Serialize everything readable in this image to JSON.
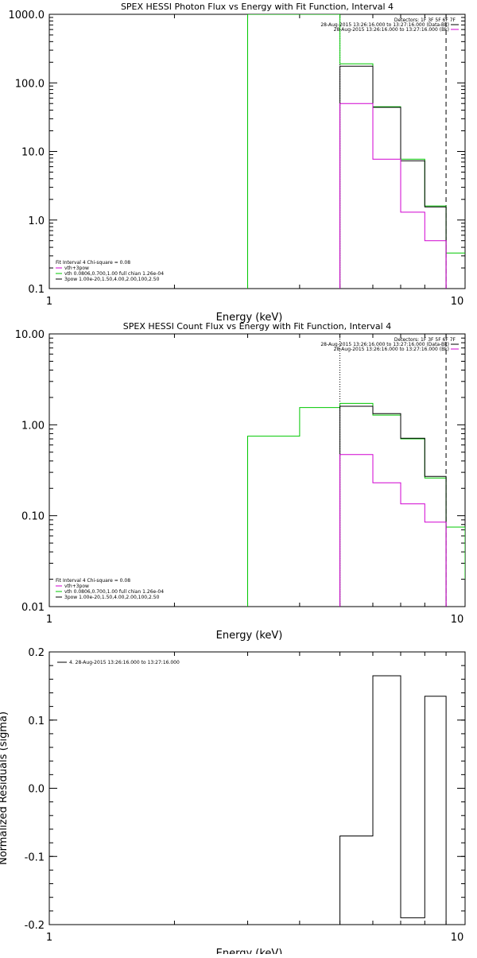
{
  "colors": {
    "background": "#ffffff",
    "axis": "#000000",
    "black": "#000000",
    "green": "#00c800",
    "magenta": "#d000d0"
  },
  "chart_data": [
    {
      "type": "line",
      "title": "SPEX HESSI Photon Flux vs Energy with Fit Function, Interval 4",
      "xlabel": "Energy (keV)",
      "ylabel": "",
      "xscale": "log",
      "yscale": "log",
      "xlim": [
        1,
        10
      ],
      "ylim": [
        0.1,
        1000
      ],
      "x_ticks": [
        1,
        10
      ],
      "x_tick_labels": [
        "1",
        "10"
      ],
      "y_ticks": [
        0.1,
        1,
        10,
        100,
        1000
      ],
      "y_tick_labels": [
        "0.1",
        "1.0",
        "10.0",
        "100.0",
        "1000.0"
      ],
      "legend_top": [
        "Detectors: 1F 3F 5F 6F 7F",
        "28-Aug-2015 13:26:16.000 to 13:27:16.000 (Data-Bk)",
        "28-Aug-2015 13:26:16.000 to 13:27:16.000 (Bk)"
      ],
      "legend_bottom": [
        "Fit Interval 4   Chi-square = 0.08",
        "vth+3pow",
        "vth 0.0806,0.700,1.00  full chian 1.26e-04",
        "3pow 1.00e-20,1.50,4.00,2.00,100,2.50"
      ],
      "vlines": [
        {
          "x": 5.0,
          "style": "dotted",
          "color": "black"
        },
        {
          "x": 9.0,
          "style": "dashed",
          "color": "black"
        }
      ],
      "series": [
        {
          "color": "green",
          "x": [
            3,
            3,
            5,
            5,
            6,
            6,
            7,
            7,
            8,
            8,
            9,
            9,
            10
          ],
          "y": [
            0.1,
            1000,
            1000,
            190,
            190,
            45,
            45,
            7.7,
            7.7,
            1.6,
            1.6,
            0.33,
            0.33
          ]
        },
        {
          "color": "black",
          "x": [
            5,
            5,
            6,
            6,
            7,
            7,
            8,
            8,
            9,
            9
          ],
          "y": [
            0.1,
            175,
            175,
            44,
            44,
            7.3,
            7.3,
            1.55,
            1.55,
            0.1
          ]
        },
        {
          "color": "magenta",
          "x": [
            5,
            5,
            6,
            6,
            7,
            7,
            8,
            8,
            9,
            9
          ],
          "y": [
            0.1,
            50,
            50,
            7.7,
            7.7,
            1.3,
            1.3,
            0.5,
            0.5,
            0.1
          ]
        }
      ]
    },
    {
      "type": "line",
      "title": "SPEX HESSI Count Flux vs Energy with Fit Function, Interval 4",
      "xlabel": "Energy (keV)",
      "ylabel": "",
      "xscale": "log",
      "yscale": "log",
      "xlim": [
        1,
        10
      ],
      "ylim": [
        0.01,
        10
      ],
      "x_ticks": [
        1,
        10
      ],
      "x_tick_labels": [
        "1",
        "10"
      ],
      "y_ticks": [
        0.01,
        0.1,
        1,
        10
      ],
      "y_tick_labels": [
        "0.01",
        "0.10",
        "1.00",
        "10.00"
      ],
      "legend_top": [
        "Detectors: 1F 3F 5F 6F 7F",
        "28-Aug-2015 13:26:16.000 to 13:27:16.000 (Data-Bk)",
        "28-Aug-2015 13:26:16.000 to 13:27:16.000 (Bk)"
      ],
      "legend_bottom": [
        "Fit Interval 4   Chi-square = 0.08",
        "vth+3pow",
        "vth 0.0806,0.700,1.00  full chian 1.26e-04",
        "3pow 1.00e-20,1.50,4.00,2.00,100,2.50"
      ],
      "vlines": [
        {
          "x": 5.0,
          "style": "dotted",
          "color": "black"
        },
        {
          "x": 9.0,
          "style": "dashed",
          "color": "black"
        }
      ],
      "series": [
        {
          "color": "green",
          "x": [
            3,
            3,
            4,
            4,
            5,
            5,
            6,
            6,
            7,
            7,
            8,
            8,
            9,
            9,
            10,
            10
          ],
          "y": [
            0.01,
            0.75,
            0.75,
            1.55,
            1.55,
            1.72,
            1.72,
            1.28,
            1.28,
            0.7,
            0.7,
            0.26,
            0.26,
            0.075,
            0.075,
            0.02
          ]
        },
        {
          "color": "black",
          "x": [
            5,
            5,
            6,
            6,
            7,
            7,
            8,
            8,
            9,
            9
          ],
          "y": [
            0.01,
            1.6,
            1.6,
            1.33,
            1.33,
            0.71,
            0.71,
            0.27,
            0.27,
            0.01
          ]
        },
        {
          "color": "magenta",
          "x": [
            5,
            5,
            6,
            6,
            7,
            7,
            8,
            8,
            9,
            9
          ],
          "y": [
            0.01,
            0.47,
            0.47,
            0.23,
            0.23,
            0.135,
            0.135,
            0.085,
            0.085,
            0.01
          ]
        }
      ]
    },
    {
      "type": "line",
      "title": "",
      "xlabel": "Energy (keV)",
      "ylabel": "Normalized Residuals (sigma)",
      "xscale": "log",
      "yscale": "linear",
      "xlim": [
        1,
        10
      ],
      "ylim": [
        -0.2,
        0.2
      ],
      "x_ticks": [
        1,
        10
      ],
      "x_tick_labels": [
        "1",
        "10"
      ],
      "y_ticks": [
        -0.2,
        -0.1,
        0.0,
        0.1,
        0.2
      ],
      "y_tick_labels": [
        "-0.2",
        "-0.1",
        "0.0",
        "0.1",
        "0.2"
      ],
      "legend_top": [
        "4. 28-Aug-2015 13:26:16.000 to 13:27:16.000"
      ],
      "legend_bottom": [],
      "vlines": [],
      "series": [
        {
          "color": "black",
          "x": [
            5,
            5,
            6,
            6,
            7,
            7,
            8,
            8,
            9,
            9
          ],
          "y": [
            -0.2,
            -0.07,
            -0.07,
            0.165,
            0.165,
            -0.19,
            -0.19,
            0.135,
            0.135,
            -0.2
          ]
        }
      ]
    }
  ]
}
